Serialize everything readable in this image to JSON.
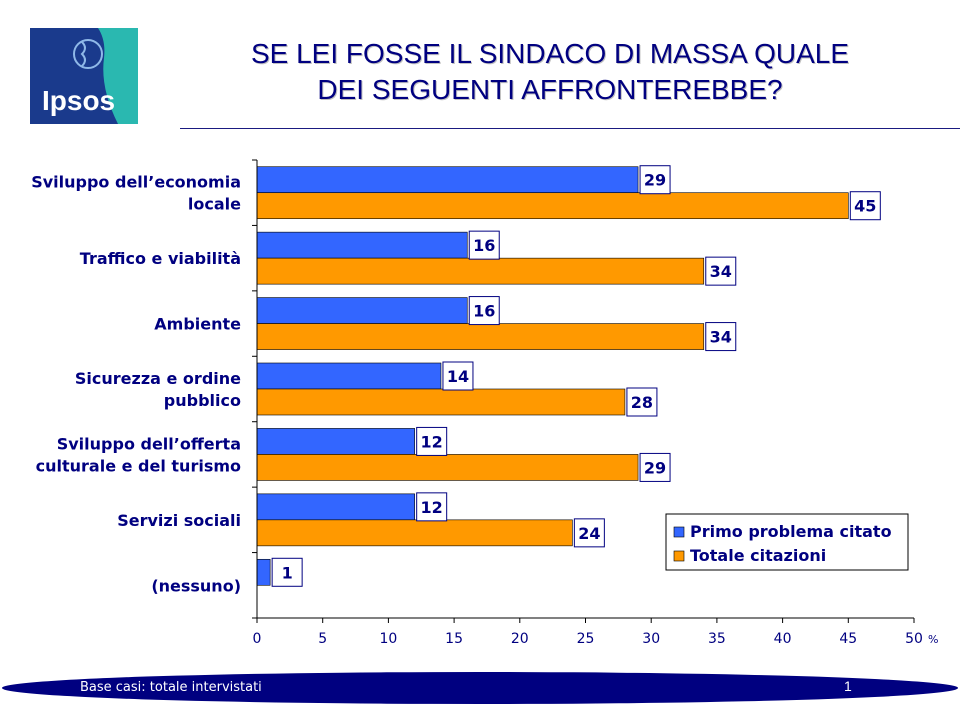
{
  "logo": {
    "text": "Ipsos"
  },
  "title": {
    "line1": "SE LEI FOSSE IL SINDACO DI MASSA QUALE",
    "line2": "DEI SEGUENTI AFFRONTEREBBE?"
  },
  "footer": {
    "note": "Base casi: totale intervistati",
    "page": "1"
  },
  "colors": {
    "title": "#000080",
    "primo": "#3366FF",
    "totale": "#FF9900",
    "footer": "#000080",
    "logo_bg": "#1a3a8c",
    "logo_accent": "#2ab8b0"
  },
  "chart_data": {
    "type": "bar",
    "orientation": "horizontal",
    "categories": [
      [
        "Sviluppo dell’economia",
        "locale"
      ],
      [
        "Traffico e viabilità"
      ],
      [
        "Ambiente"
      ],
      [
        "Sicurezza e ordine",
        "pubblico"
      ],
      [
        "Sviluppo dell’offerta",
        "culturale e del turismo"
      ],
      [
        "Servizi sociali"
      ],
      [
        "(nessuno)"
      ]
    ],
    "series": [
      {
        "name": "Primo problema citato",
        "values": [
          29,
          16,
          16,
          14,
          12,
          12,
          1
        ]
      },
      {
        "name": "Totale citazioni",
        "values": [
          45,
          34,
          34,
          28,
          29,
          24,
          null
        ]
      }
    ],
    "xlim": [
      0,
      50
    ],
    "xticks": [
      0,
      5,
      10,
      15,
      20,
      25,
      30,
      35,
      40,
      45,
      50
    ],
    "xunit": "%",
    "legend_position": "bottom-right",
    "grid": false
  }
}
